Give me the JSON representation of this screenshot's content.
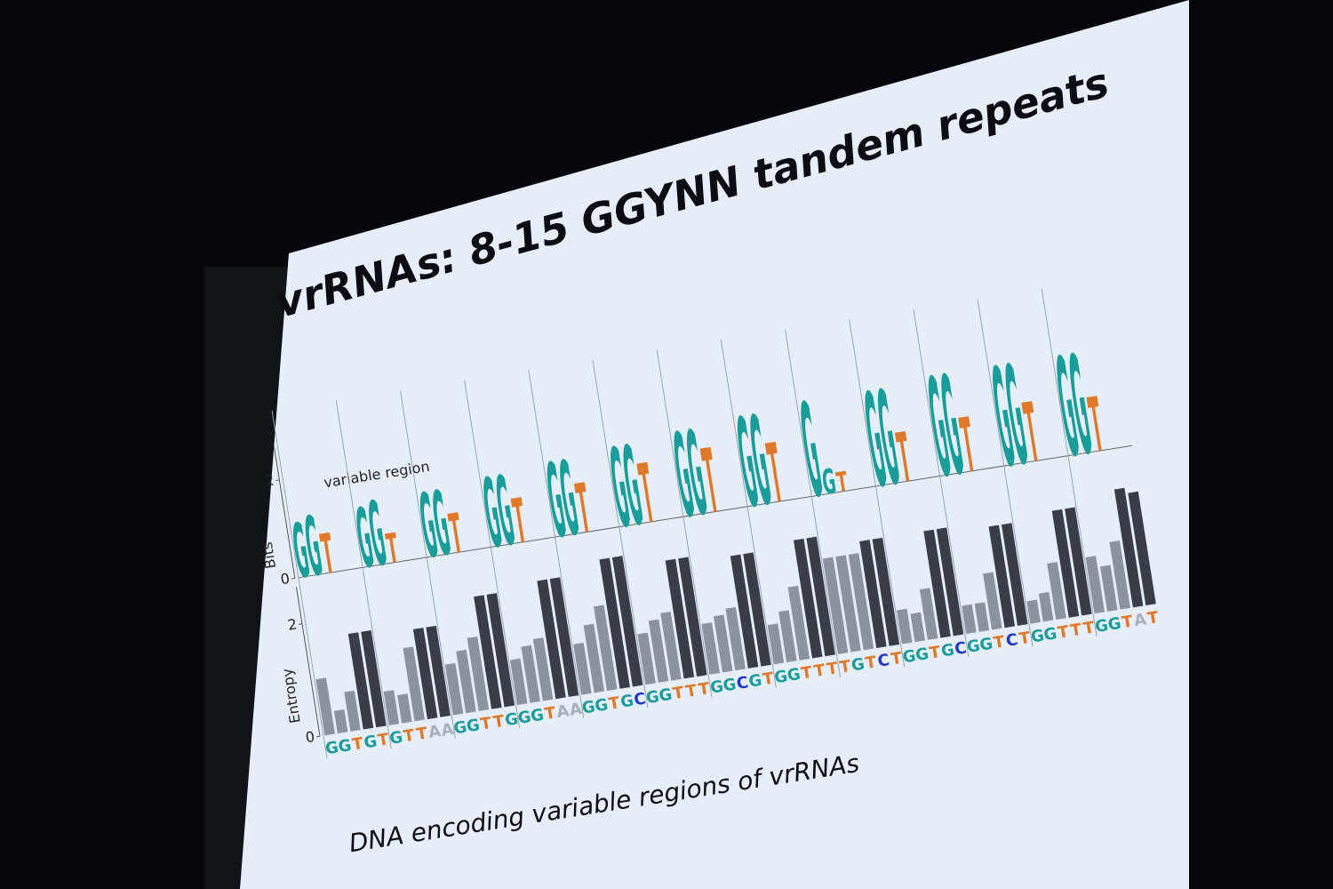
{
  "chart_data": {
    "type": "entropy-logo",
    "title": "vrRNAs: 8-15 GGYNN tandem repeats",
    "annotation": "variable region",
    "caption": "DNA encoding variable regions of vrRNAs",
    "ylabel": "Entropy",
    "y2label": "Bits",
    "categories": [
      "G",
      "G",
      "T",
      "G",
      "T",
      "G",
      "T",
      "T",
      "A",
      "A",
      "G",
      "G",
      "T",
      "T",
      "G",
      "G",
      "G",
      "T",
      "A",
      "A",
      "G",
      "G",
      "T",
      "G",
      "C",
      "G",
      "G",
      "T",
      "T",
      "T",
      "G",
      "G",
      "C",
      "G",
      "T",
      "G",
      "G",
      "T",
      "T",
      "T",
      "T",
      "G",
      "T",
      "C",
      "T",
      "G",
      "G",
      "T",
      "G",
      "C",
      "G",
      "G",
      "T",
      "C",
      "T",
      "G",
      "G",
      "T",
      "T",
      "T",
      "G",
      "G",
      "T",
      "A",
      "T"
    ],
    "values": [
      1.0,
      0.4,
      0.7,
      1.7,
      1.7,
      0.6,
      0.5,
      1.3,
      1.6,
      1.6,
      0.9,
      1.1,
      1.3,
      2.0,
      2.0,
      0.8,
      1.0,
      1.1,
      2.1,
      2.1,
      0.9,
      1.2,
      1.5,
      2.3,
      2.3,
      0.9,
      1.1,
      1.2,
      2.1,
      2.1,
      0.9,
      1.0,
      1.1,
      2.0,
      2.0,
      0.7,
      0.9,
      1.3,
      2.1,
      2.1,
      1.7,
      1.7,
      1.7,
      1.9,
      1.9,
      0.6,
      0.5,
      0.9,
      1.9,
      1.9,
      0.5,
      0.5,
      1.0,
      1.8,
      1.8,
      0.4,
      0.5,
      1.0,
      1.9,
      1.9,
      1.0,
      0.8,
      1.2,
      2.1,
      2.0
    ],
    "ylim": [
      0,
      2.5
    ],
    "yticks": [
      0,
      2
    ],
    "y2lim": [
      0,
      2.5
    ],
    "y2ticks": [
      0,
      2
    ],
    "logo_letters": [
      "G",
      "G",
      "T"
    ],
    "logo_bits": [
      [
        1.1,
        1.2,
        0.8
      ],
      [
        1.2,
        1.3,
        0.6
      ],
      [
        1.3,
        1.3,
        0.8
      ],
      [
        1.4,
        1.4,
        0.9
      ],
      [
        1.5,
        1.5,
        1.0
      ],
      [
        1.6,
        1.6,
        1.2
      ],
      [
        1.7,
        1.7,
        1.3
      ],
      [
        1.8,
        1.8,
        1.2
      ],
      [
        1.9,
        0.5,
        0.4
      ],
      [
        1.9,
        1.9,
        1.0
      ],
      [
        2.0,
        2.0,
        1.1
      ],
      [
        2.0,
        2.0,
        1.2
      ],
      [
        2.0,
        2.0,
        1.1
      ]
    ],
    "letter_colors": {
      "G": "#1a9c9a",
      "T": "#e0782a",
      "C": "#2038c0",
      "A": "#a8b0bc"
    },
    "bar_colors": [
      "#8c939c",
      "#8c939c",
      "#8c939c",
      "#383d46",
      "#383d46"
    ]
  }
}
